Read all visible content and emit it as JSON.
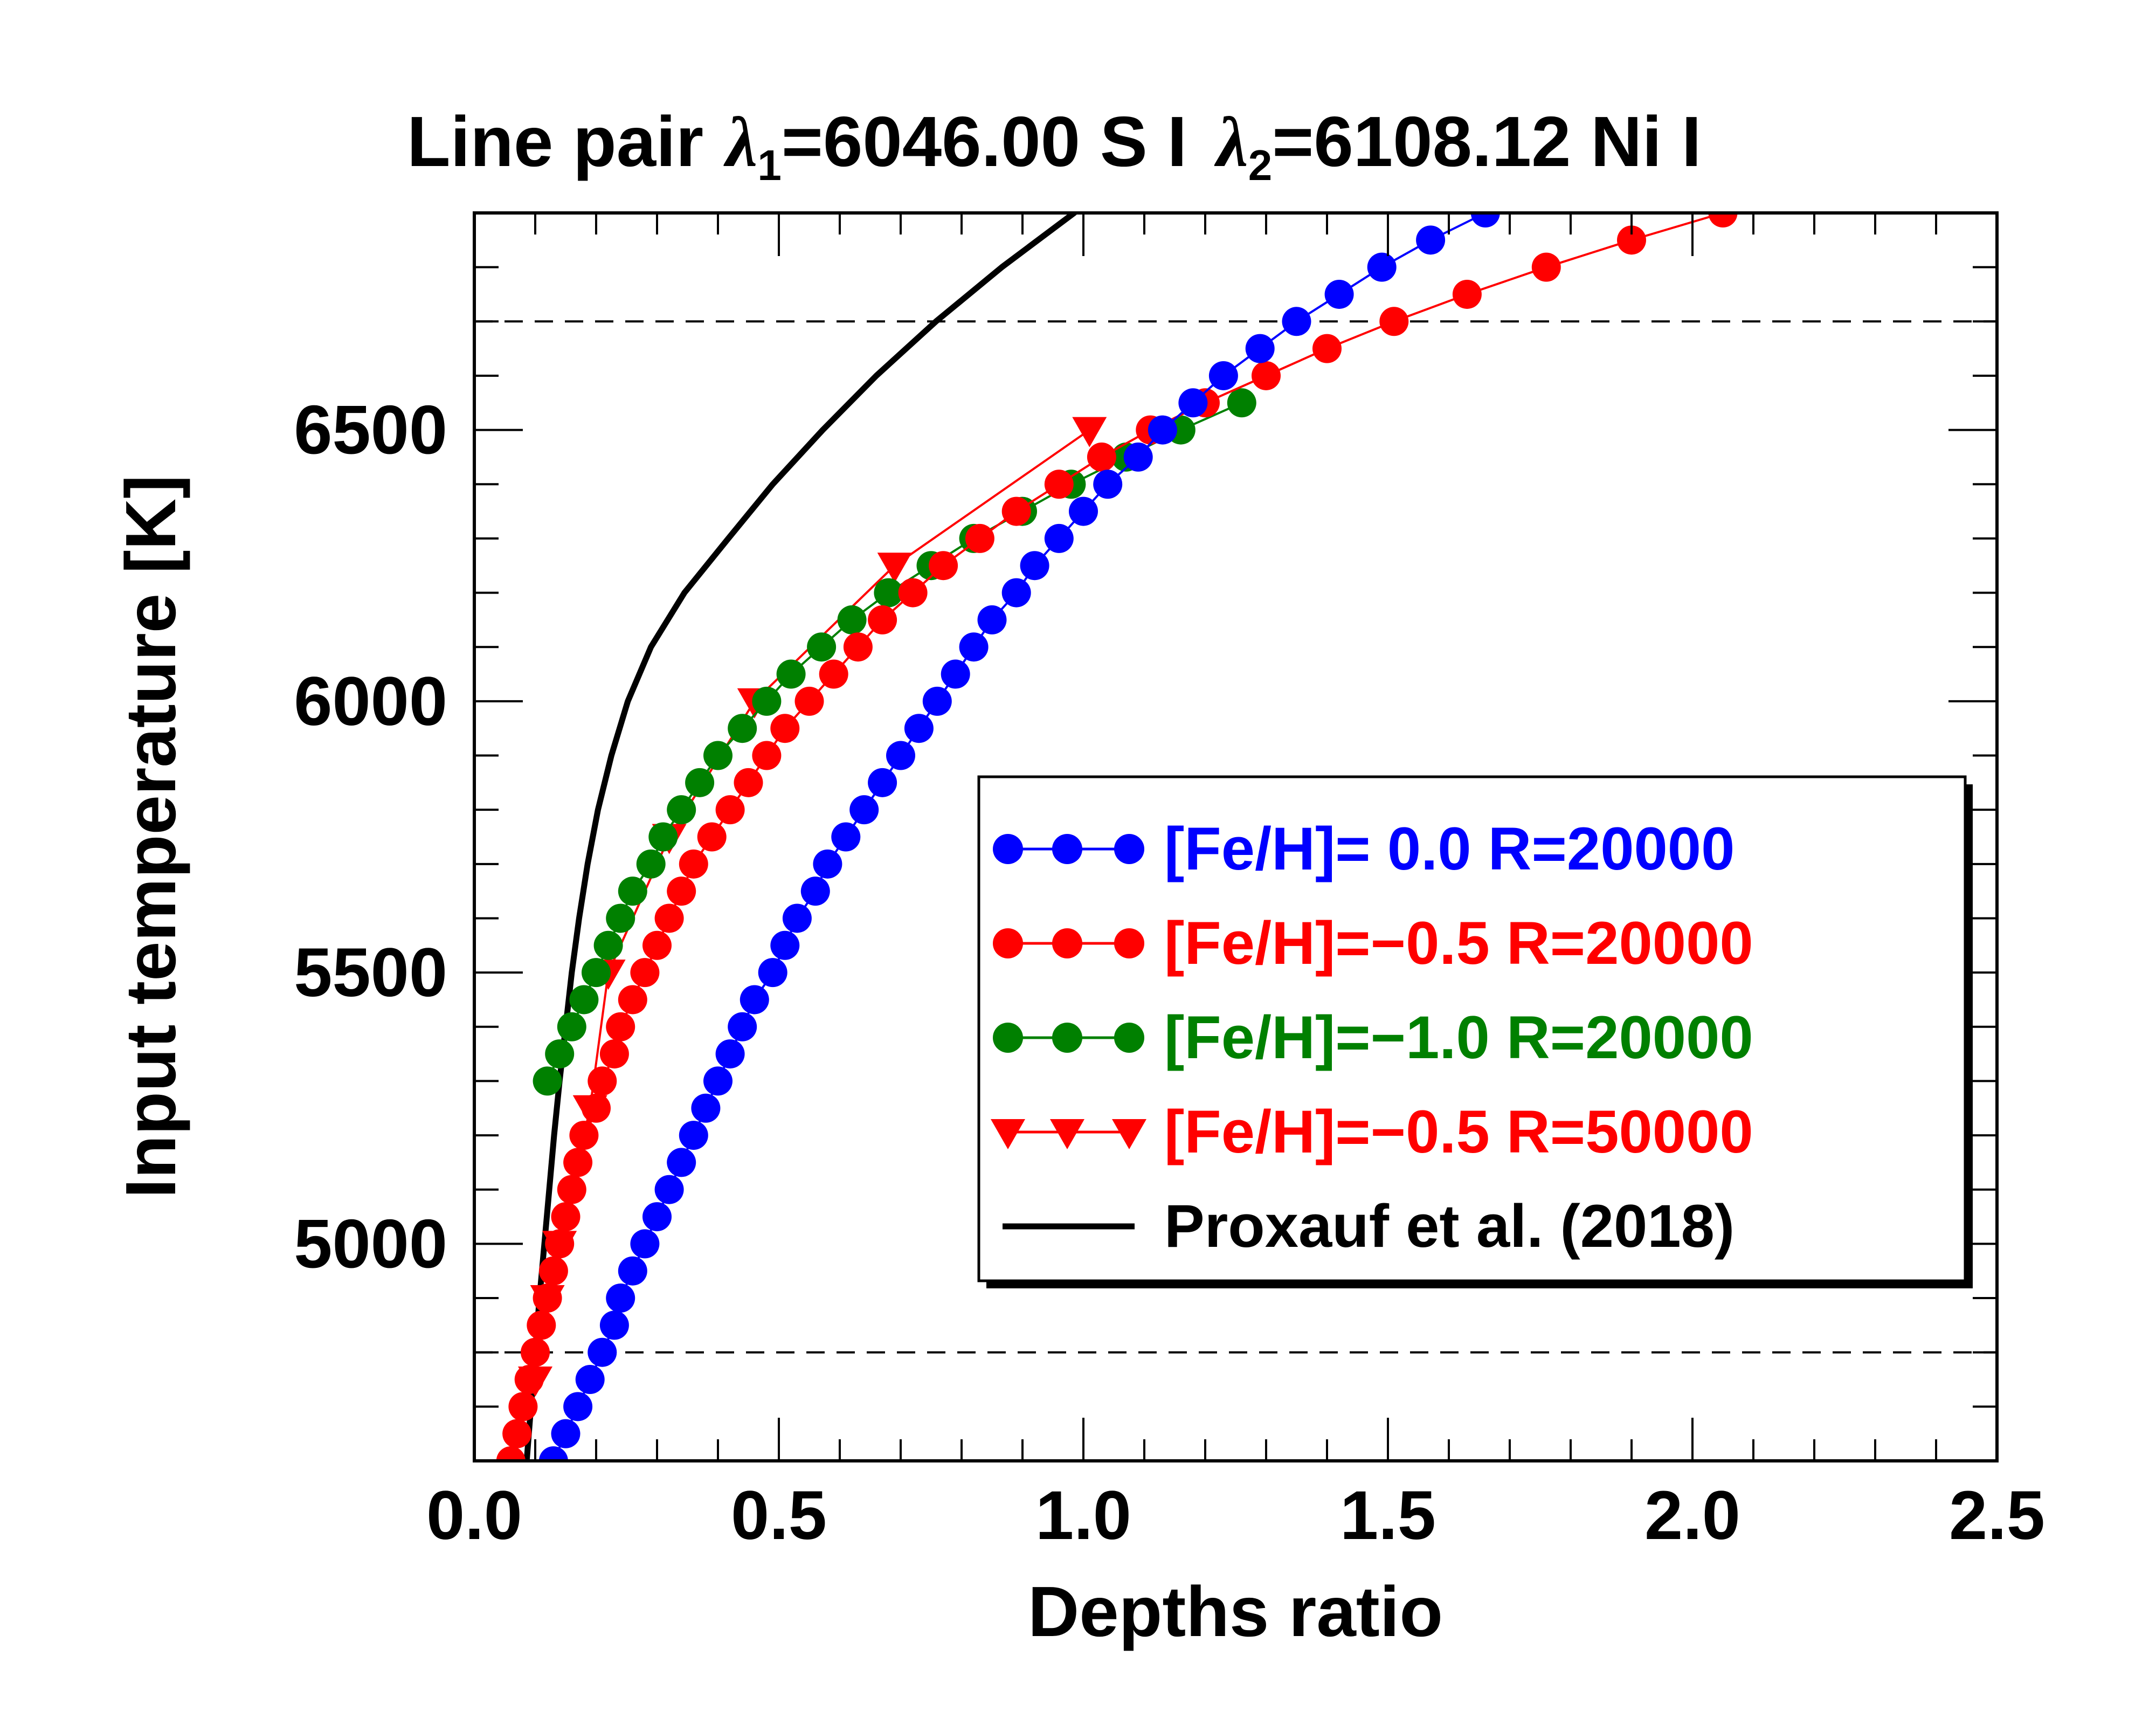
{
  "chart_data": {
    "type": "line",
    "title": {
      "prefix": "Line pair ",
      "lambda1_symbol": "λ",
      "lambda1_sub": "1",
      "lambda1_value": "=6046.00 S I",
      "lambda2_symbol": "λ",
      "lambda2_sub": "2",
      "lambda2_value": "=6108.12 Ni I"
    },
    "xlabel": "Depths ratio",
    "ylabel": "Input temperature [K]",
    "xlim": [
      0.0,
      2.5
    ],
    "ylim": [
      4600,
      6900
    ],
    "xticks": [
      {
        "value": 0.0,
        "label": "0.0"
      },
      {
        "value": 0.5,
        "label": "0.5"
      },
      {
        "value": 1.0,
        "label": "1.0"
      },
      {
        "value": 1.5,
        "label": "1.5"
      },
      {
        "value": 2.0,
        "label": "2.0"
      },
      {
        "value": 2.5,
        "label": "2.5"
      }
    ],
    "yticks": [
      {
        "value": 5000,
        "label": "5000"
      },
      {
        "value": 5500,
        "label": "5500"
      },
      {
        "value": 6000,
        "label": "6000"
      },
      {
        "value": 6500,
        "label": "6500"
      }
    ],
    "x_minor_step": 0.1,
    "y_minor_step": 100,
    "reference_lines": [
      4800,
      6700
    ],
    "legend_position": "lower-right",
    "series": [
      {
        "name": "[Fe/H]= 0.0 R=20000",
        "color": "#0000ff",
        "marker": "circle",
        "points": [
          [
            0.13,
            4600
          ],
          [
            0.15,
            4650
          ],
          [
            0.17,
            4700
          ],
          [
            0.19,
            4750
          ],
          [
            0.21,
            4800
          ],
          [
            0.23,
            4850
          ],
          [
            0.24,
            4900
          ],
          [
            0.26,
            4950
          ],
          [
            0.28,
            5000
          ],
          [
            0.3,
            5050
          ],
          [
            0.32,
            5100
          ],
          [
            0.34,
            5150
          ],
          [
            0.36,
            5200
          ],
          [
            0.38,
            5250
          ],
          [
            0.4,
            5300
          ],
          [
            0.42,
            5350
          ],
          [
            0.44,
            5400
          ],
          [
            0.46,
            5450
          ],
          [
            0.49,
            5500
          ],
          [
            0.51,
            5550
          ],
          [
            0.53,
            5600
          ],
          [
            0.56,
            5650
          ],
          [
            0.58,
            5700
          ],
          [
            0.61,
            5750
          ],
          [
            0.64,
            5800
          ],
          [
            0.67,
            5850
          ],
          [
            0.7,
            5900
          ],
          [
            0.73,
            5950
          ],
          [
            0.76,
            6000
          ],
          [
            0.79,
            6050
          ],
          [
            0.82,
            6100
          ],
          [
            0.85,
            6150
          ],
          [
            0.89,
            6200
          ],
          [
            0.92,
            6250
          ],
          [
            0.96,
            6300
          ],
          [
            1.0,
            6350
          ],
          [
            1.04,
            6400
          ],
          [
            1.09,
            6450
          ],
          [
            1.13,
            6500
          ],
          [
            1.18,
            6550
          ],
          [
            1.23,
            6600
          ],
          [
            1.29,
            6650
          ],
          [
            1.35,
            6700
          ],
          [
            1.42,
            6750
          ],
          [
            1.49,
            6800
          ],
          [
            1.57,
            6850
          ],
          [
            1.66,
            6900
          ]
        ]
      },
      {
        "name": "[Fe/H]=−0.5 R=20000",
        "color": "#ff0000",
        "marker": "circle",
        "points": [
          [
            0.06,
            4600
          ],
          [
            0.07,
            4650
          ],
          [
            0.08,
            4700
          ],
          [
            0.09,
            4750
          ],
          [
            0.1,
            4800
          ],
          [
            0.11,
            4850
          ],
          [
            0.12,
            4900
          ],
          [
            0.13,
            4950
          ],
          [
            0.14,
            5000
          ],
          [
            0.15,
            5050
          ],
          [
            0.16,
            5100
          ],
          [
            0.17,
            5150
          ],
          [
            0.18,
            5200
          ],
          [
            0.2,
            5250
          ],
          [
            0.21,
            5300
          ],
          [
            0.23,
            5350
          ],
          [
            0.24,
            5400
          ],
          [
            0.26,
            5450
          ],
          [
            0.28,
            5500
          ],
          [
            0.3,
            5550
          ],
          [
            0.32,
            5600
          ],
          [
            0.34,
            5650
          ],
          [
            0.36,
            5700
          ],
          [
            0.39,
            5750
          ],
          [
            0.42,
            5800
          ],
          [
            0.45,
            5850
          ],
          [
            0.48,
            5900
          ],
          [
            0.51,
            5950
          ],
          [
            0.55,
            6000
          ],
          [
            0.59,
            6050
          ],
          [
            0.63,
            6100
          ],
          [
            0.67,
            6150
          ],
          [
            0.72,
            6200
          ],
          [
            0.77,
            6250
          ],
          [
            0.83,
            6300
          ],
          [
            0.89,
            6350
          ],
          [
            0.96,
            6400
          ],
          [
            1.03,
            6450
          ],
          [
            1.11,
            6500
          ],
          [
            1.2,
            6550
          ],
          [
            1.3,
            6600
          ],
          [
            1.4,
            6650
          ],
          [
            1.51,
            6700
          ],
          [
            1.63,
            6750
          ],
          [
            1.76,
            6800
          ],
          [
            1.9,
            6850
          ],
          [
            2.05,
            6900
          ]
        ]
      },
      {
        "name": "[Fe/H]=−1.0 R=20000",
        "color": "#008000",
        "marker": "circle",
        "points": [
          [
            0.12,
            5300
          ],
          [
            0.14,
            5350
          ],
          [
            0.16,
            5400
          ],
          [
            0.18,
            5450
          ],
          [
            0.2,
            5500
          ],
          [
            0.22,
            5550
          ],
          [
            0.24,
            5600
          ],
          [
            0.26,
            5650
          ],
          [
            0.29,
            5700
          ],
          [
            0.31,
            5750
          ],
          [
            0.34,
            5800
          ],
          [
            0.37,
            5850
          ],
          [
            0.4,
            5900
          ],
          [
            0.44,
            5950
          ],
          [
            0.48,
            6000
          ],
          [
            0.52,
            6050
          ],
          [
            0.57,
            6100
          ],
          [
            0.62,
            6150
          ],
          [
            0.68,
            6200
          ],
          [
            0.75,
            6250
          ],
          [
            0.82,
            6300
          ],
          [
            0.9,
            6350
          ],
          [
            0.98,
            6400
          ],
          [
            1.07,
            6450
          ],
          [
            1.16,
            6500
          ],
          [
            1.26,
            6550
          ]
        ]
      },
      {
        "name": "[Fe/H]=−0.5 R=50000",
        "color": "#ff0000",
        "marker": "triangle-down",
        "points": [
          [
            0.1,
            4750
          ],
          [
            0.12,
            4900
          ],
          [
            0.14,
            5000
          ],
          [
            0.19,
            5250
          ],
          [
            0.22,
            5500
          ],
          [
            0.32,
            5750
          ],
          [
            0.46,
            6000
          ],
          [
            0.69,
            6250
          ],
          [
            1.01,
            6500
          ]
        ]
      },
      {
        "name": "Proxauf et al. (2018)",
        "color": "#000000",
        "marker": "none",
        "points": [
          [
            0.086,
            4600
          ],
          [
            0.093,
            4700
          ],
          [
            0.1,
            4800
          ],
          [
            0.107,
            4900
          ],
          [
            0.115,
            5000
          ],
          [
            0.123,
            5100
          ],
          [
            0.131,
            5200
          ],
          [
            0.14,
            5300
          ],
          [
            0.15,
            5400
          ],
          [
            0.16,
            5500
          ],
          [
            0.172,
            5600
          ],
          [
            0.186,
            5700
          ],
          [
            0.203,
            5800
          ],
          [
            0.225,
            5900
          ],
          [
            0.252,
            6000
          ],
          [
            0.29,
            6100
          ],
          [
            0.345,
            6200
          ],
          [
            0.417,
            6300
          ],
          [
            0.49,
            6400
          ],
          [
            0.572,
            6500
          ],
          [
            0.66,
            6600
          ],
          [
            0.758,
            6700
          ],
          [
            0.866,
            6800
          ],
          [
            0.985,
            6900
          ]
        ]
      }
    ]
  }
}
